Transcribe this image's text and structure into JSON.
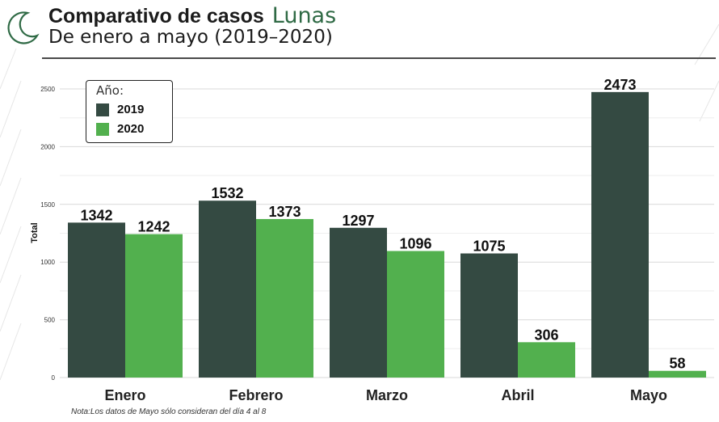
{
  "header": {
    "title": "Comparativo de casos",
    "brand": "Lunas",
    "subtitle": "De enero a mayo (2019–2020)"
  },
  "colors": {
    "series_2019": "#344a42",
    "series_2020": "#52b04e",
    "brand_green": "#2f6a45",
    "grid": "#d9d9d9"
  },
  "legend": {
    "title": "Año:",
    "items": [
      {
        "label": "2019"
      },
      {
        "label": "2020"
      }
    ]
  },
  "note": "Nota:Los datos de Mayo sólo consideran del día 4 al 8",
  "chart_data": {
    "type": "bar",
    "categories": [
      "Enero",
      "Febrero",
      "Marzo",
      "Abril",
      "Mayo"
    ],
    "series": [
      {
        "name": "2019",
        "values": [
          1342,
          1532,
          1297,
          1075,
          2473
        ]
      },
      {
        "name": "2020",
        "values": [
          1242,
          1373,
          1096,
          306,
          58
        ]
      }
    ],
    "ylabel": "Total",
    "ylim": [
      0,
      2500
    ],
    "yticks": [
      0,
      500,
      1000,
      1500,
      2000,
      2500
    ],
    "grid": true,
    "legend_position": "top-left"
  }
}
